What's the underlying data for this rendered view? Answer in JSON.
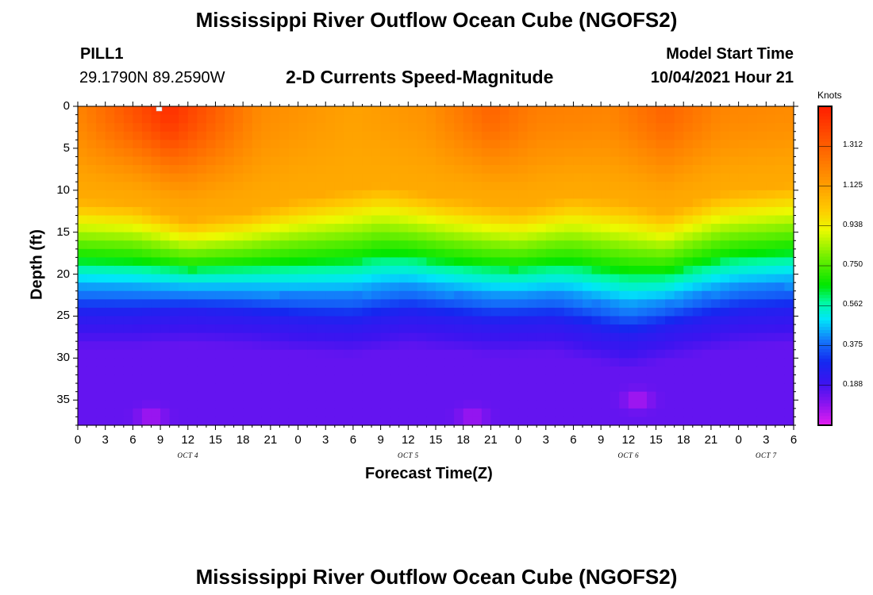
{
  "header": {
    "title_top": "Mississippi River Outflow Ocean Cube (NGOFS2)",
    "station": "PILL1",
    "coords": "29.1790N  89.2590W",
    "subtitle": "2-D Currents Speed-Magnitude",
    "model_start_label": "Model Start Time",
    "model_start_value": "10/04/2021 Hour 21",
    "title_bottom": "Mississippi River Outflow Ocean Cube (NGOFS2)"
  },
  "colorbar": {
    "unit": "Knots",
    "ticks": [
      "1.312",
      "1.125",
      "0.938",
      "0.750",
      "0.562",
      "0.375",
      "0.188"
    ],
    "tick_values": [
      1.312,
      1.125,
      0.938,
      0.75,
      0.562,
      0.375,
      0.188
    ],
    "range": [
      0,
      1.5
    ]
  },
  "chart_data": {
    "type": "heatmap",
    "title": "2-D Currents Speed-Magnitude",
    "xlabel": "Forecast Time(Z)",
    "ylabel": "Depth (ft)",
    "xlim_hours": [
      0,
      78
    ],
    "ylim_ft": [
      0,
      38
    ],
    "y_inverted": true,
    "y_ticks": [
      0,
      5,
      10,
      15,
      20,
      25,
      30,
      35
    ],
    "x_tick_positions_hours": [
      0,
      3,
      6,
      9,
      12,
      15,
      18,
      21,
      24,
      27,
      30,
      33,
      36,
      39,
      42,
      45,
      48,
      51,
      54,
      57,
      60,
      63,
      66,
      69,
      72,
      75,
      78
    ],
    "x_tick_labels": [
      "0",
      "3",
      "6",
      "9",
      "12",
      "15",
      "18",
      "21",
      "0",
      "3",
      "6",
      "9",
      "12",
      "15",
      "18",
      "21",
      "0",
      "3",
      "6",
      "9",
      "12",
      "15",
      "18",
      "21",
      "0",
      "3",
      "6"
    ],
    "day_labels": [
      {
        "label": "OCT 4",
        "hour": 12
      },
      {
        "label": "OCT 5",
        "hour": 36
      },
      {
        "label": "OCT 6",
        "hour": 60
      },
      {
        "label": "OCT 7",
        "hour": 75
      }
    ],
    "value_units": "knots",
    "value_range": [
      0,
      1.5
    ],
    "surface_speed_by_hour": [
      [
        0,
        1.2
      ],
      [
        4,
        1.3
      ],
      [
        10,
        1.45
      ],
      [
        20,
        1.18
      ],
      [
        30,
        1.12
      ],
      [
        38,
        1.16
      ],
      [
        45,
        1.3
      ],
      [
        50,
        1.22
      ],
      [
        58,
        1.2
      ],
      [
        64,
        1.3
      ],
      [
        70,
        1.2
      ],
      [
        78,
        1.18
      ]
    ],
    "transition_depth_by_hour": [
      [
        0,
        11.0
      ],
      [
        6,
        11.5
      ],
      [
        12,
        13.5
      ],
      [
        18,
        12.6
      ],
      [
        24,
        11.0
      ],
      [
        33,
        9.3
      ],
      [
        40,
        10.8
      ],
      [
        48,
        12.0
      ],
      [
        54,
        10.6
      ],
      [
        60,
        11.3
      ],
      [
        64,
        12.5
      ],
      [
        70,
        10.2
      ],
      [
        78,
        9.3
      ]
    ],
    "deep_trough_depth_by_hour": [
      [
        0,
        24.8
      ],
      [
        6,
        24.8
      ],
      [
        12,
        24.5
      ],
      [
        18,
        24.8
      ],
      [
        24,
        25.5
      ],
      [
        30,
        25.8
      ],
      [
        36,
        24.8
      ],
      [
        45,
        25.8
      ],
      [
        52,
        25.6
      ],
      [
        60,
        27.5
      ],
      [
        66,
        26.0
      ],
      [
        72,
        24.8
      ],
      [
        78,
        24.5
      ]
    ],
    "near_bottom_minima": [
      {
        "hour": 8,
        "depth_ft": 37,
        "speed": 0.03
      },
      {
        "hour": 43,
        "depth_ft": 37,
        "speed": 0.04
      },
      {
        "hour": 61,
        "depth_ft": 35,
        "speed": 0.02
      }
    ]
  }
}
